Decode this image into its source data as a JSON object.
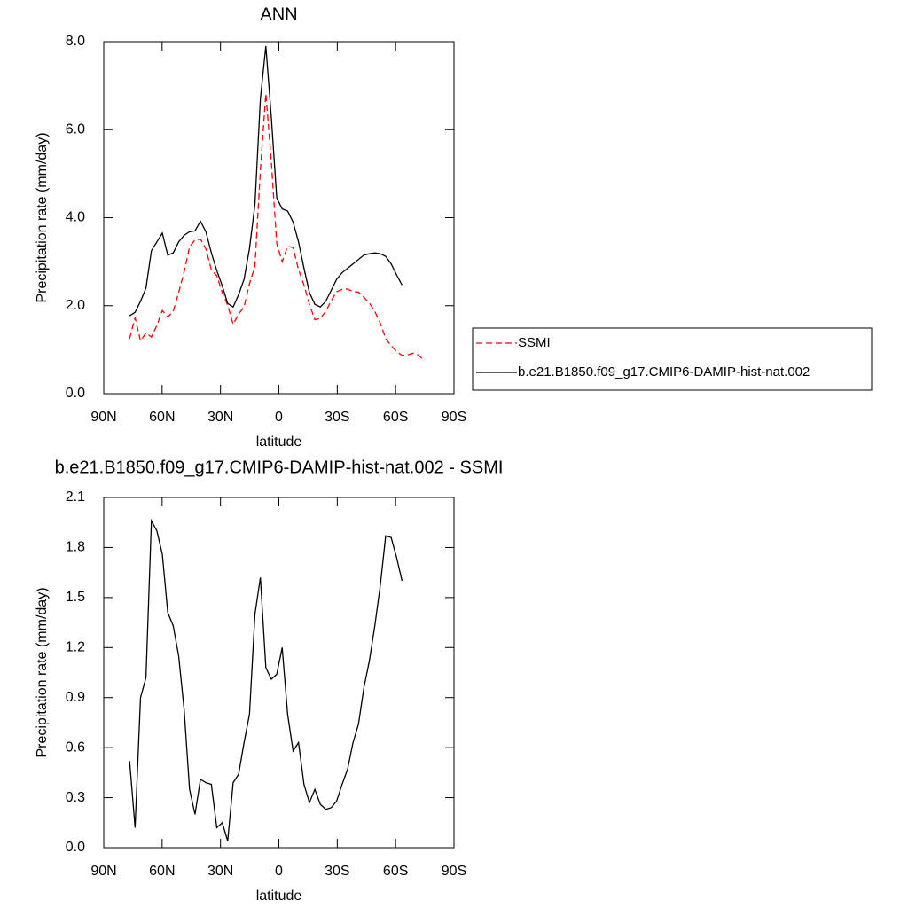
{
  "chart_data": [
    {
      "type": "line",
      "title": "ANN",
      "xlabel": "latitude",
      "ylabel": "Precipitation rate (mm/day)",
      "x": [
        76.7,
        73.9,
        71.1,
        68.3,
        65.5,
        62.7,
        59.9,
        57.1,
        54.3,
        51.5,
        48.7,
        45.9,
        43.1,
        40.3,
        37.5,
        34.7,
        31.9,
        29.1,
        26.3,
        23.5,
        20.7,
        17.9,
        15.1,
        12.3,
        9.5,
        6.7,
        3.9,
        1.1,
        -1.7,
        -4.5,
        -7.3,
        -10.1,
        -12.9,
        -15.7,
        -18.5,
        -21.3,
        -24.1,
        -26.9,
        -29.7,
        -32.5,
        -35.3,
        -38.1,
        -40.9,
        -43.7,
        -46.5,
        -49.3,
        -52.1,
        -54.9,
        -57.7,
        -60.5,
        -63.3,
        -66.1,
        -68.9,
        -71.7,
        -74.5
      ],
      "series": [
        {
          "name": "SSMI",
          "color": "#ff0000",
          "line_style": "dashed",
          "values": [
            1.25,
            1.73,
            1.2,
            1.38,
            1.29,
            1.55,
            1.89,
            1.74,
            1.87,
            2.3,
            2.77,
            3.33,
            3.5,
            3.51,
            3.29,
            2.82,
            2.68,
            2.3,
            2.01,
            1.58,
            1.81,
            1.97,
            2.5,
            2.9,
            5.08,
            6.82,
            5.29,
            3.41,
            3.0,
            3.35,
            3.32,
            2.82,
            2.47,
            2.03,
            1.68,
            1.71,
            1.87,
            2.11,
            2.32,
            2.37,
            2.38,
            2.32,
            2.31,
            2.19,
            2.06,
            1.87,
            1.61,
            1.25,
            1.09,
            0.96,
            0.87,
            0.88,
            0.92,
            0.88,
            0.76
          ]
        },
        {
          "name": "b.e21.B1850.f09_g17.CMIP6-DAMIP-hist-nat.002",
          "color": "#000000",
          "line_style": "solid",
          "values": [
            1.77,
            1.85,
            2.1,
            2.4,
            3.25,
            3.45,
            3.65,
            3.15,
            3.2,
            3.45,
            3.6,
            3.68,
            3.7,
            3.92,
            3.68,
            3.2,
            2.8,
            2.45,
            2.05,
            1.97,
            2.25,
            2.6,
            3.3,
            4.3,
            6.7,
            7.9,
            6.3,
            4.45,
            4.2,
            4.15,
            3.9,
            3.45,
            2.85,
            2.3,
            2.03,
            1.97,
            2.1,
            2.35,
            2.6,
            2.75,
            2.85,
            2.95,
            3.05,
            3.15,
            3.18,
            3.2,
            3.18,
            3.12,
            2.95,
            2.7,
            2.47,
            null,
            null,
            null,
            null
          ]
        }
      ],
      "xlim": [
        90,
        -90
      ],
      "xticks": [
        {
          "value": 90,
          "label": "90N"
        },
        {
          "value": 60,
          "label": "60N"
        },
        {
          "value": 30,
          "label": "30N"
        },
        0,
        {
          "value": -30,
          "label": "30S"
        },
        {
          "value": -60,
          "label": "60S"
        },
        {
          "value": -90,
          "label": "90S"
        }
      ],
      "ylim": [
        0,
        8
      ],
      "yticks": [
        {
          "value": 0,
          "label": "0.0"
        },
        {
          "value": 2,
          "label": "2.0"
        },
        {
          "value": 4,
          "label": "4.0"
        },
        {
          "value": 6,
          "label": "6.0"
        },
        {
          "value": 8,
          "label": "8.0"
        }
      ],
      "legend": "outside right"
    },
    {
      "type": "line",
      "title": "b.e21.B1850.f09_g17.CMIP6-DAMIP-hist-nat.002 - SSMI",
      "xlabel": "latitude",
      "ylabel": "Precipitation rate (mm/day)",
      "x": [
        76.7,
        73.9,
        71.1,
        68.3,
        65.5,
        62.7,
        59.9,
        57.1,
        54.3,
        51.5,
        48.7,
        45.9,
        43.1,
        40.3,
        37.5,
        34.7,
        31.9,
        29.1,
        26.3,
        23.5,
        20.7,
        17.9,
        15.1,
        12.3,
        9.5,
        6.7,
        3.9,
        1.1,
        -1.7,
        -4.5,
        -7.3,
        -10.1,
        -12.9,
        -15.7,
        -18.5,
        -21.3,
        -24.1,
        -26.9,
        -29.7,
        -32.5,
        -35.3,
        -38.1,
        -40.9,
        -43.7,
        -46.5,
        -49.3,
        -52.1,
        -54.9,
        -57.7,
        -60.5,
        -63.3
      ],
      "color": "#000000",
      "values": [
        0.52,
        0.12,
        0.9,
        1.02,
        1.96,
        1.9,
        1.76,
        1.41,
        1.33,
        1.15,
        0.83,
        0.35,
        0.2,
        0.41,
        0.39,
        0.38,
        0.12,
        0.15,
        0.04,
        0.39,
        0.44,
        0.63,
        0.8,
        1.4,
        1.62,
        1.08,
        1.01,
        1.04,
        1.2,
        0.8,
        0.58,
        0.63,
        0.38,
        0.27,
        0.35,
        0.26,
        0.23,
        0.24,
        0.28,
        0.38,
        0.47,
        0.63,
        0.74,
        0.96,
        1.12,
        1.33,
        1.57,
        1.87,
        1.86,
        1.74,
        1.6
      ],
      "xlim": [
        90,
        -90
      ],
      "xticks": [
        {
          "value": 90,
          "label": "90N"
        },
        {
          "value": 60,
          "label": "60N"
        },
        {
          "value": 30,
          "label": "30N"
        },
        0,
        {
          "value": -30,
          "label": "30S"
        },
        {
          "value": -60,
          "label": "60S"
        },
        {
          "value": -90,
          "label": "90S"
        }
      ],
      "ylim": [
        0,
        2.1
      ],
      "yticks": [
        {
          "value": 0,
          "label": "0.0"
        },
        0.3,
        0.6,
        0.9,
        1.2,
        1.5,
        1.8,
        2.1
      ]
    }
  ]
}
